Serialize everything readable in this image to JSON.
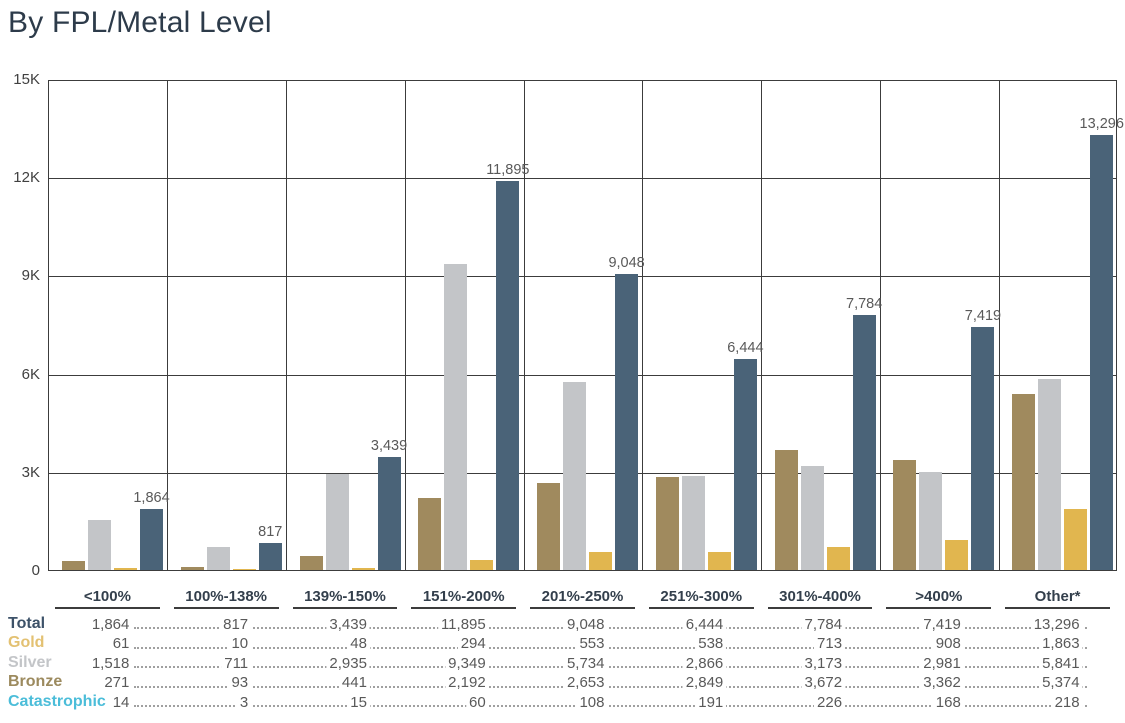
{
  "page_title": "By FPL/Metal Level",
  "colors": {
    "background": "#ffffff",
    "title_text": "#2d3b4a",
    "grid_line": "#3c3c3c",
    "axis_tick_text": "#404040",
    "bar_value_text": "#595959",
    "table_value_text": "#595959",
    "x_header_text": "#333f4c",
    "x_header_underline": "#3c3c3c",
    "leader_dots": "#a0a0a0"
  },
  "chart_data": {
    "type": "bar",
    "title": "By FPL/Metal Level",
    "categories": [
      "<100%",
      "100%-138%",
      "139%-150%",
      "151%-200%",
      "201%-250%",
      "251%-300%",
      "301%-400%",
      ">400%",
      "Other*"
    ],
    "series": {
      "Total": {
        "color": "#4a6378",
        "label_color": "#3d5269",
        "values": [
          1864,
          817,
          3439,
          11895,
          9048,
          6444,
          7784,
          7419,
          13296
        ]
      },
      "Gold": {
        "color": "#e1b64f",
        "label_color": "#e3c172",
        "values": [
          61,
          10,
          48,
          294,
          553,
          538,
          713,
          908,
          1863
        ]
      },
      "Silver": {
        "color": "#c3c5c8",
        "label_color": "#c3c5c8",
        "values": [
          1518,
          711,
          2935,
          9349,
          5734,
          2866,
          3173,
          2981,
          5841
        ]
      },
      "Bronze": {
        "color": "#a08a5e",
        "label_color": "#9c8a5e",
        "values": [
          271,
          93,
          441,
          2192,
          2653,
          2849,
          3672,
          3362,
          5374
        ]
      },
      "Catastrophic": {
        "color": "#4bbdd9",
        "label_color": "#4bbdd9",
        "values": [
          14,
          3,
          15,
          60,
          108,
          191,
          226,
          168,
          218
        ]
      }
    },
    "plot_order": [
      "Bronze",
      "Silver",
      "Gold",
      "Total"
    ],
    "data_label_series": "Total",
    "table_order": [
      "Total",
      "Gold",
      "Silver",
      "Bronze",
      "Catastrophic"
    ],
    "y_axis": {
      "min": 0,
      "max": 15000,
      "tick_step": 3000,
      "tick_labels": [
        "0",
        "3K",
        "6K",
        "9K",
        "12K",
        "15K"
      ]
    },
    "grid": "both",
    "legend_position": "row labels of value table below chart"
  }
}
